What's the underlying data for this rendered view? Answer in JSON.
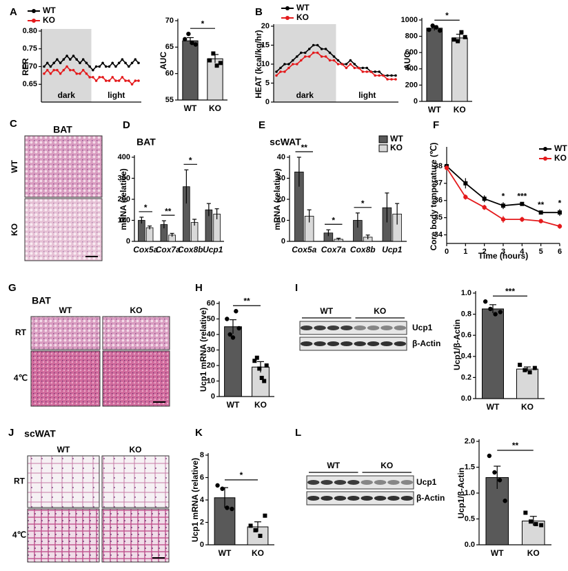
{
  "chart_data": [
    {
      "panel": "A",
      "type": "line",
      "ylabel": "RER",
      "ylim": [
        0.6,
        0.8
      ],
      "yticks": [
        0.65,
        {
          "value": 0.7,
          "label": "0.70"
        },
        0.75,
        {
          "value": 0.8,
          "label": "0.80"
        }
      ],
      "period_labels": [
        "dark",
        "light"
      ],
      "legend": "upper-left",
      "series": [
        {
          "name": "WT",
          "color": "#000000",
          "values": [
            0.7,
            0.71,
            0.7,
            0.71,
            0.72,
            0.71,
            0.72,
            0.73,
            0.72,
            0.73,
            0.72,
            0.71,
            0.72,
            0.71,
            0.7,
            0.69,
            0.7,
            0.7,
            0.71,
            0.7,
            0.7,
            0.71,
            0.7,
            0.71,
            0.72,
            0.71,
            0.7,
            0.71,
            0.72,
            0.71
          ]
        },
        {
          "name": "KO",
          "color": "#e41a1c",
          "values": [
            0.68,
            0.69,
            0.68,
            0.69,
            0.69,
            0.68,
            0.69,
            0.7,
            0.69,
            0.69,
            0.68,
            0.68,
            0.69,
            0.68,
            0.67,
            0.67,
            0.66,
            0.67,
            0.67,
            0.66,
            0.66,
            0.67,
            0.66,
            0.66,
            0.67,
            0.66,
            0.66,
            0.65,
            0.66,
            0.66
          ]
        }
      ]
    },
    {
      "type": "bar",
      "ylabel": "AUC",
      "categories": [
        "WT",
        "KO"
      ],
      "values": [
        66.2,
        62.8
      ],
      "errors": [
        0.6,
        0.8
      ],
      "points": [
        [
          66.5,
          67.5,
          65.8,
          65.5
        ],
        [
          62.5,
          63.8,
          61.5,
          62.0
        ]
      ],
      "colors": [
        "#595959",
        "#d9d9d9"
      ],
      "ylim": [
        55,
        70
      ],
      "yticks": [
        55,
        60,
        65,
        70
      ],
      "significance": "*"
    },
    {
      "panel": "B",
      "type": "line",
      "ylabel": "HEAT (kcal/kg/hr)",
      "ylim": [
        0,
        20
      ],
      "yticks": [
        0,
        5,
        10,
        15,
        20
      ],
      "period_labels": [
        "dark",
        "light"
      ],
      "legend": "upper-left",
      "series": [
        {
          "name": "WT",
          "color": "#000000",
          "values": [
            8,
            9,
            10,
            10,
            11,
            12,
            13,
            13,
            14,
            15,
            15,
            14,
            14,
            13,
            12,
            11,
            10,
            10,
            11,
            10,
            9,
            9,
            9,
            8,
            8,
            8,
            7,
            7,
            7,
            7
          ]
        },
        {
          "name": "KO",
          "color": "#e41a1c",
          "values": [
            7,
            8,
            8,
            9,
            10,
            10,
            11,
            12,
            12,
            13,
            13,
            12,
            12,
            11,
            11,
            10,
            10,
            9,
            10,
            9,
            9,
            8,
            8,
            8,
            7,
            7,
            7,
            6,
            6,
            6
          ]
        }
      ]
    },
    {
      "type": "bar",
      "ylabel": "AUC",
      "categories": [
        "WT",
        "KO"
      ],
      "values": [
        900,
        780
      ],
      "errors": [
        30,
        45
      ],
      "points": [
        [
          880,
          930,
          910,
          870
        ],
        [
          760,
          740,
          850,
          790
        ]
      ],
      "colors": [
        "#595959",
        "#d9d9d9"
      ],
      "ylim": [
        0,
        1000
      ],
      "yticks": [
        0,
        200,
        400,
        600,
        800,
        1000
      ],
      "significance": "*"
    },
    {
      "panel": "D",
      "type": "bar",
      "title": "BAT",
      "ylabel": "mRNA (relative)",
      "categories": [
        "Cox5a",
        "Cox7a",
        "Cox8b",
        "Ucp1"
      ],
      "series": [
        {
          "color": "#595959",
          "values": [
            100,
            80,
            260,
            150
          ],
          "errors": [
            15,
            18,
            80,
            30
          ]
        },
        {
          "color": "#d9d9d9",
          "values": [
            65,
            30,
            90,
            130
          ],
          "errors": [
            8,
            8,
            15,
            25
          ]
        }
      ],
      "ylim": [
        0,
        400
      ],
      "yticks": [
        0,
        100,
        200,
        300,
        400
      ],
      "significance": [
        "*",
        "**",
        "*",
        null
      ]
    },
    {
      "panel": "E",
      "type": "bar",
      "title": "scWAT",
      "ylabel": "mRNA (relative)",
      "categories": [
        "Cox5a",
        "Cox7a",
        "Cox8b",
        "Ucp1"
      ],
      "series": [
        {
          "name": "WT",
          "color": "#595959",
          "values": [
            33,
            4,
            10,
            16
          ],
          "errors": [
            7,
            1.5,
            3.5,
            7
          ]
        },
        {
          "name": "KO",
          "color": "#d9d9d9",
          "values": [
            12,
            1,
            2,
            13
          ],
          "errors": [
            3,
            0.5,
            1,
            5
          ]
        }
      ],
      "ylim": [
        0,
        40
      ],
      "yticks": [
        0,
        10,
        20,
        30,
        40
      ],
      "significance": [
        "**",
        "*",
        "*",
        null
      ],
      "legend": "upper-right"
    },
    {
      "panel": "F",
      "type": "line",
      "ylabel": "Core body temperature (℃)",
      "xlabel": "Time (hours)",
      "x": [
        0,
        1,
        2,
        3,
        4,
        5,
        6
      ],
      "xlim": [
        0,
        6
      ],
      "xticks": [
        0,
        1,
        2,
        3,
        4,
        5,
        6
      ],
      "ylim": [
        33.5,
        39
      ],
      "yticks": [
        34,
        35,
        36,
        37,
        38
      ],
      "legend": "upper-right",
      "series": [
        {
          "name": "WT",
          "color": "#000000",
          "values": [
            38,
            37,
            36.1,
            35.7,
            35.8,
            35.3,
            35.3
          ],
          "errors": [
            0.15,
            0.3,
            0.2,
            0.2,
            0.1,
            0.1,
            0.2
          ]
        },
        {
          "name": "KO",
          "color": "#e41a1c",
          "values": [
            37.9,
            36.2,
            35.6,
            34.9,
            34.9,
            34.8,
            34.5
          ],
          "errors": [
            0.15,
            0.15,
            0.15,
            0.2,
            0.15,
            0.1,
            0.15
          ]
        }
      ],
      "significance": [
        null,
        null,
        null,
        "*",
        "***",
        "**",
        "*"
      ]
    },
    {
      "panel": "H",
      "type": "bar",
      "ylabel": "Ucp1 mRNA (relative)",
      "categories": [
        "WT",
        "KO"
      ],
      "values": [
        45,
        19
      ],
      "errors": [
        4.5,
        3.5
      ],
      "points": [
        [
          50,
          40,
          38,
          55,
          44
        ],
        [
          23,
          25,
          18,
          12,
          10,
          20
        ]
      ],
      "colors": [
        "#595959",
        "#d9d9d9"
      ],
      "ylim": [
        0,
        60
      ],
      "yticks": [
        0,
        10,
        20,
        30,
        40,
        50,
        60
      ],
      "significance": "**"
    },
    {
      "panel": "I",
      "type": "bar",
      "ylabel": "Ucp1/β-Actin",
      "categories": [
        "WT",
        "KO"
      ],
      "values": [
        0.85,
        0.28
      ],
      "errors": [
        0.04,
        0.02
      ],
      "points": [
        [
          0.92,
          0.85,
          0.8,
          0.82
        ],
        [
          0.32,
          0.27,
          0.25,
          0.29
        ]
      ],
      "colors": [
        "#595959",
        "#d9d9d9"
      ],
      "ylim": [
        0,
        1
      ],
      "yticks": [
        {
          "value": 0,
          "label": "0.0"
        },
        0.2,
        0.4,
        0.6,
        0.8,
        {
          "value": 1,
          "label": "1.0"
        }
      ],
      "significance": "***",
      "blot": {
        "groups": [
          "WT",
          "KO"
        ],
        "bands": [
          "Ucp1",
          "β-Actin"
        ]
      }
    },
    {
      "panel": "K",
      "type": "bar",
      "ylabel": "Ucp1 mRNA (relative)",
      "categories": [
        "WT",
        "KO"
      ],
      "values": [
        4.2,
        1.6
      ],
      "errors": [
        0.9,
        0.45
      ],
      "points": [
        [
          5.3,
          5.0,
          3.3,
          3.2
        ],
        [
          1.7,
          1.3,
          0.8,
          2.6
        ]
      ],
      "colors": [
        "#595959",
        "#d9d9d9"
      ],
      "ylim": [
        0,
        8
      ],
      "yticks": [
        0,
        2,
        4,
        6,
        8
      ],
      "significance": "*"
    },
    {
      "panel": "L",
      "type": "bar",
      "ylabel": "Ucp1/β-Actin",
      "categories": [
        "WT",
        "KO"
      ],
      "values": [
        1.3,
        0.46
      ],
      "errors": [
        0.22,
        0.09
      ],
      "points": [
        [
          1.72,
          1.4,
          1.25,
          0.85
        ],
        [
          0.62,
          0.45,
          0.4,
          0.38
        ]
      ],
      "colors": [
        "#595959",
        "#d9d9d9"
      ],
      "ylim": [
        0,
        2
      ],
      "yticks": [
        {
          "value": 0,
          "label": "0.0"
        },
        0.5,
        {
          "value": 1,
          "label": "1.0"
        },
        1.5,
        {
          "value": 2,
          "label": "2.0"
        }
      ],
      "significance": "**",
      "blot": {
        "groups": [
          "WT",
          "KO"
        ],
        "bands": [
          "Ucp1",
          "β-Actin"
        ]
      }
    }
  ],
  "images": [
    {
      "panel": "C",
      "title": "BAT",
      "rows": [
        "WT",
        "KO"
      ]
    },
    {
      "panel": "G",
      "title": "BAT",
      "columns": [
        "WT",
        "KO"
      ],
      "rows": [
        "RT",
        "4℃"
      ]
    },
    {
      "panel": "J",
      "title": "scWAT",
      "columns": [
        "WT",
        "KO"
      ],
      "rows": [
        "RT",
        "4℃"
      ]
    }
  ]
}
